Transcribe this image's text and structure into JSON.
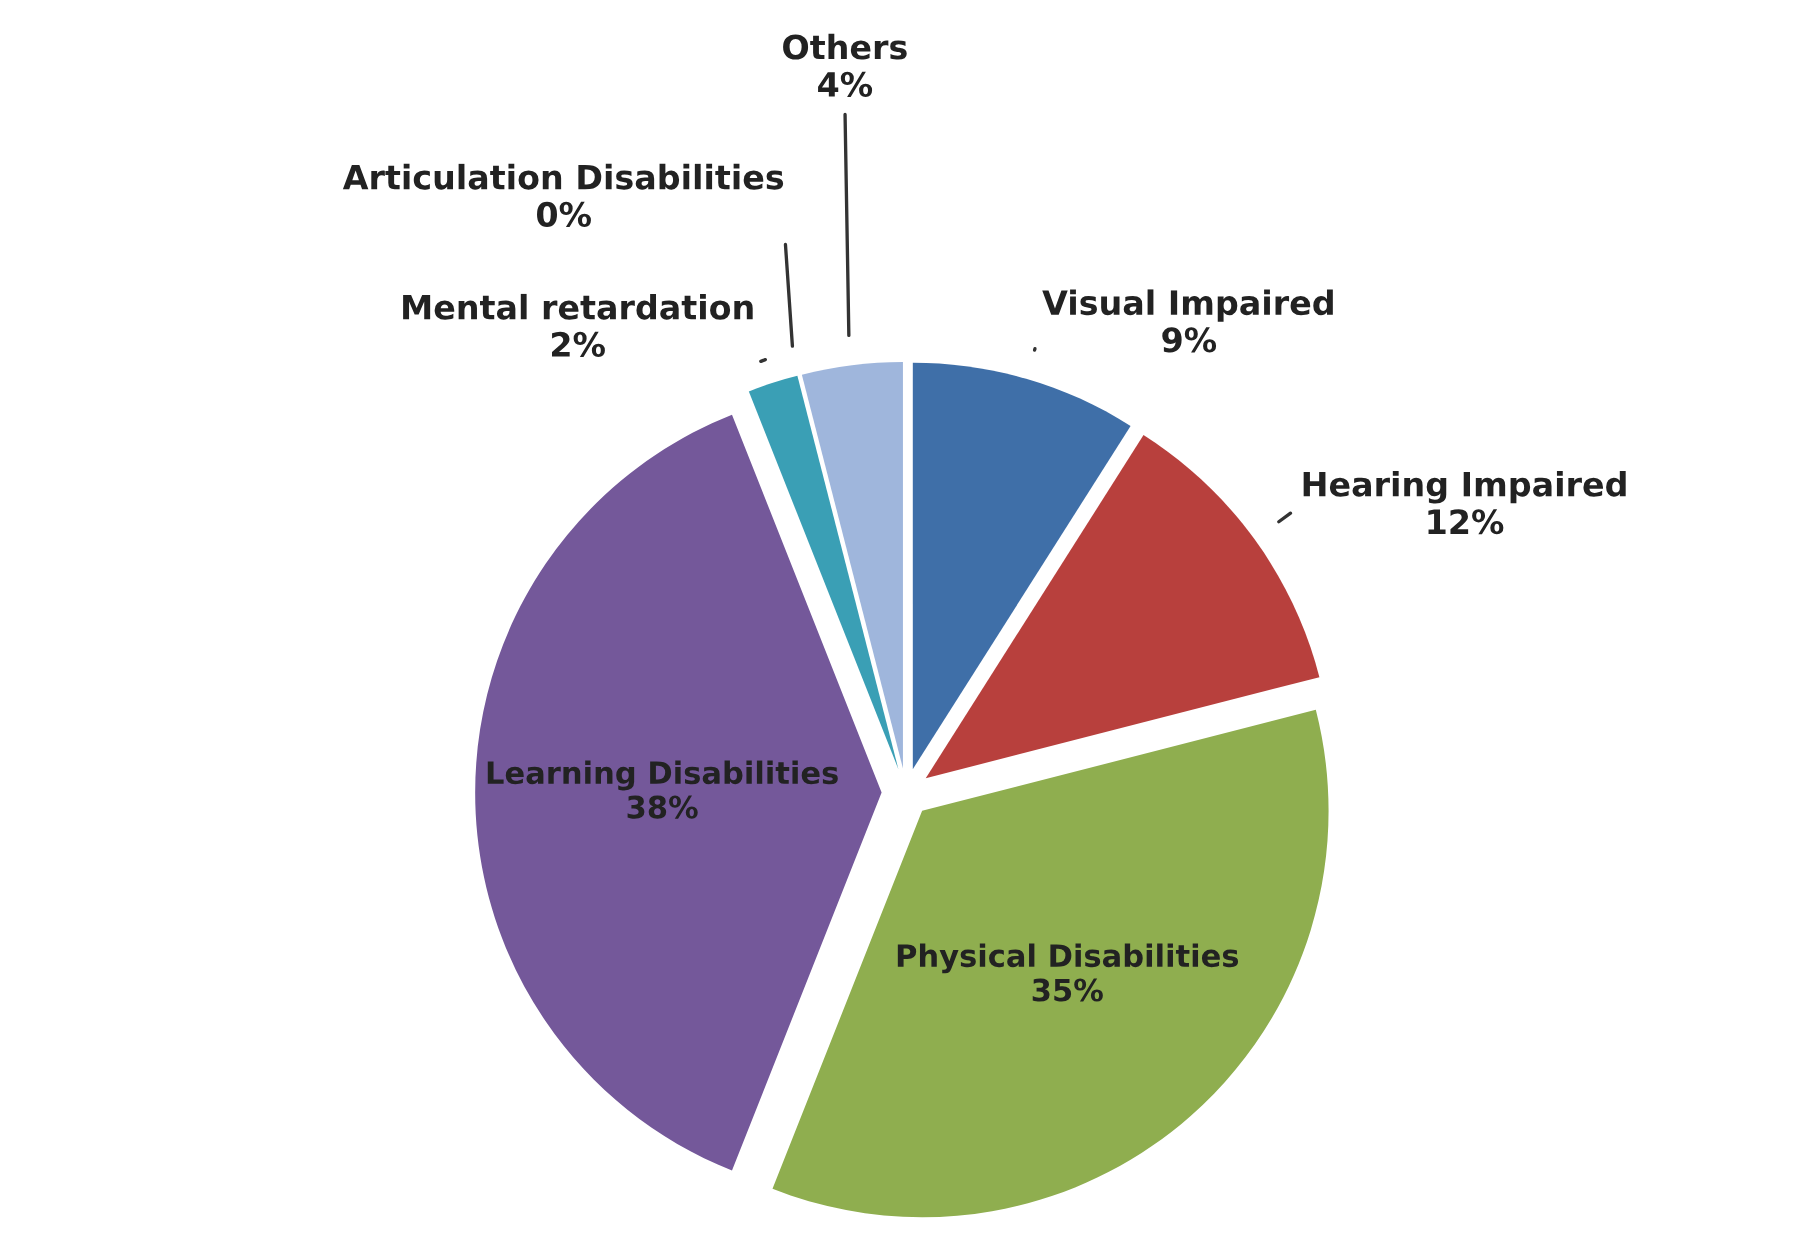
{
  "chart_data": {
    "type": "pie",
    "categories": [
      "Visual Impaired",
      "Hearing Impaired",
      "Physical Disabilities",
      "Learning Disabilities",
      "Mental retardation",
      "Articulation Disabilities",
      "Others"
    ],
    "values": [
      9,
      12,
      35,
      38,
      2,
      0,
      4
    ],
    "value_labels": [
      "9%",
      "12%",
      "35%",
      "38%",
      "2%",
      "0%",
      "4%"
    ],
    "colors": [
      "#3f6fa8",
      "#b8403d",
      "#8fae4f",
      "#74589a",
      "#3a9fb5",
      "#e07b39",
      "#9fb6dc"
    ],
    "legend": false
  }
}
